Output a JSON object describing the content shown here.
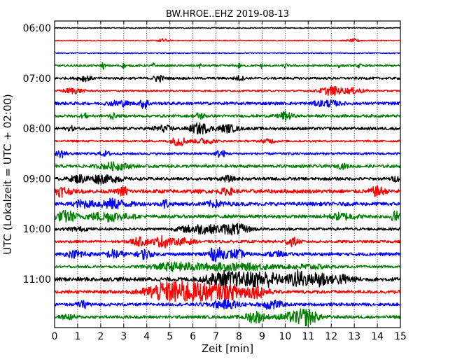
{
  "chart_data": {
    "type": "line",
    "title": "BW.HROE..EHZ 2019-08-13",
    "xlabel": "Zeit  [min]",
    "ylabel": "UTC (Lokalzeit = UTC + 02:00)",
    "xlim": [
      0,
      15
    ],
    "x_ticks": [
      "0",
      "1",
      "2",
      "3",
      "4",
      "5",
      "6",
      "7",
      "8",
      "9",
      "10",
      "11",
      "12",
      "13",
      "14",
      "15"
    ],
    "y_tick_labels": [
      "06:00",
      "07:00",
      "08:00",
      "09:00",
      "10:00",
      "11:00"
    ],
    "vertical_grid": "dotted",
    "trace_interval_min": 15,
    "trace_colors": [
      "#000000",
      "#ff0000",
      "#0000ff",
      "#008000"
    ],
    "series": [
      {
        "start": "06:00",
        "color": "#000000",
        "noise": 0.15,
        "events": []
      },
      {
        "start": "06:15",
        "color": "#ff0000",
        "noise": 0.15,
        "events": [
          [
            4.7,
            0.5,
            0.15
          ],
          [
            13.0,
            0.4,
            0.2
          ]
        ]
      },
      {
        "start": "06:30",
        "color": "#0000ff",
        "noise": 0.15,
        "events": []
      },
      {
        "start": "06:45",
        "color": "#008000",
        "noise": 0.3,
        "events": [
          [
            2.1,
            1.0,
            0.05
          ],
          [
            3.0,
            0.7,
            0.05
          ],
          [
            4.3,
            0.7,
            0.05
          ],
          [
            6.3,
            0.7,
            0.05
          ],
          [
            8.0,
            0.7,
            0.05
          ],
          [
            9.0,
            0.7,
            0.05
          ],
          [
            10.0,
            0.9,
            0.05
          ],
          [
            12.3,
            0.6,
            0.05
          ],
          [
            13.2,
            0.6,
            0.05
          ]
        ]
      },
      {
        "start": "07:00",
        "color": "#000000",
        "noise": 0.35,
        "events": [
          [
            1.3,
            0.8,
            0.2
          ],
          [
            4.5,
            1.0,
            0.15
          ],
          [
            8.0,
            0.6,
            0.15
          ]
        ]
      },
      {
        "start": "07:15",
        "color": "#ff0000",
        "noise": 0.25,
        "events": [
          [
            0.8,
            0.8,
            0.3
          ],
          [
            12.0,
            1.3,
            0.35
          ],
          [
            13.0,
            0.8,
            0.3
          ]
        ]
      },
      {
        "start": "07:30",
        "color": "#0000ff",
        "noise": 0.45,
        "events": [
          [
            2.8,
            0.8,
            0.3
          ],
          [
            3.9,
            1.6,
            0.12
          ],
          [
            11.8,
            0.8,
            0.4
          ]
        ]
      },
      {
        "start": "07:45",
        "color": "#008000",
        "noise": 0.4,
        "events": [
          [
            1.3,
            0.7,
            0.1
          ],
          [
            2.5,
            0.8,
            0.1
          ],
          [
            6.3,
            0.9,
            0.15
          ],
          [
            10.0,
            1.2,
            0.2
          ]
        ]
      },
      {
        "start": "08:00",
        "color": "#000000",
        "noise": 0.45,
        "events": [
          [
            0.7,
            0.6,
            0.1
          ],
          [
            4.7,
            0.8,
            0.3
          ],
          [
            6.3,
            1.5,
            0.3
          ],
          [
            7.5,
            1.0,
            0.3
          ]
        ]
      },
      {
        "start": "08:15",
        "color": "#ff0000",
        "noise": 0.3,
        "events": [
          [
            5.4,
            1.4,
            0.25
          ],
          [
            6.5,
            0.8,
            0.3
          ],
          [
            9.3,
            0.6,
            0.2
          ]
        ]
      },
      {
        "start": "08:30",
        "color": "#0000ff",
        "noise": 0.35,
        "events": [
          [
            0.3,
            1.1,
            0.15
          ],
          [
            2.2,
            0.6,
            0.2
          ],
          [
            7.2,
            1.1,
            0.15
          ]
        ]
      },
      {
        "start": "08:45",
        "color": "#008000",
        "noise": 0.45,
        "events": [
          [
            2.6,
            1.0,
            0.45
          ],
          [
            12.5,
            0.6,
            0.15
          ]
        ]
      },
      {
        "start": "09:00",
        "color": "#000000",
        "noise": 0.45,
        "events": [
          [
            1.1,
            1.1,
            0.3
          ],
          [
            2.0,
            1.3,
            0.25
          ],
          [
            2.7,
            0.9,
            0.2
          ],
          [
            7.5,
            0.7,
            0.2
          ],
          [
            14.8,
            0.6,
            0.15
          ]
        ]
      },
      {
        "start": "09:15",
        "color": "#ff0000",
        "noise": 0.6,
        "events": [
          [
            0.3,
            1.3,
            0.25
          ],
          [
            3.0,
            1.3,
            0.15
          ],
          [
            7.5,
            0.8,
            0.2
          ],
          [
            14.0,
            1.3,
            0.2
          ]
        ]
      },
      {
        "start": "09:30",
        "color": "#0000ff",
        "noise": 0.55,
        "events": [
          [
            1.2,
            1.0,
            0.25
          ],
          [
            2.5,
            1.3,
            0.5
          ],
          [
            4.8,
            1.3,
            0.1
          ],
          [
            7.0,
            0.8,
            0.3
          ]
        ]
      },
      {
        "start": "09:45",
        "color": "#008000",
        "noise": 0.5,
        "events": [
          [
            0.5,
            1.6,
            0.3
          ],
          [
            2.3,
            1.3,
            0.6
          ],
          [
            12.5,
            0.9,
            0.4
          ],
          [
            14.8,
            1.4,
            0.15
          ]
        ]
      },
      {
        "start": "10:00",
        "color": "#000000",
        "noise": 0.4,
        "events": [
          [
            6.3,
            1.3,
            0.6
          ],
          [
            7.8,
            1.5,
            0.45
          ],
          [
            1.0,
            0.5,
            0.3
          ]
        ]
      },
      {
        "start": "10:15",
        "color": "#ff0000",
        "noise": 0.4,
        "events": [
          [
            3.7,
            1.1,
            0.3
          ],
          [
            4.7,
            1.7,
            0.25
          ],
          [
            5.6,
            0.9,
            0.3
          ],
          [
            10.3,
            1.2,
            0.2
          ]
        ]
      },
      {
        "start": "10:30",
        "color": "#0000ff",
        "noise": 0.5,
        "events": [
          [
            1.0,
            1.0,
            0.3
          ],
          [
            2.6,
            1.2,
            0.25
          ],
          [
            3.9,
            1.3,
            0.2
          ],
          [
            7.0,
            1.8,
            0.3
          ],
          [
            7.9,
            1.2,
            0.25
          ],
          [
            9.6,
            0.8,
            0.2
          ]
        ]
      },
      {
        "start": "10:45",
        "color": "#008000",
        "noise": 0.35,
        "events": [
          [
            5.3,
            1.2,
            0.8
          ],
          [
            7.5,
            1.0,
            0.8
          ],
          [
            9.0,
            0.6,
            0.5
          ],
          [
            11.0,
            0.7,
            0.6
          ]
        ]
      },
      {
        "start": "11:00",
        "color": "#000000",
        "noise": 0.6,
        "events": [
          [
            7.3,
            2.1,
            0.5
          ],
          [
            8.5,
            1.6,
            0.5
          ],
          [
            9.3,
            1.6,
            0.4
          ],
          [
            10.6,
            2.6,
            0.3
          ],
          [
            11.5,
            2.6,
            0.2
          ],
          [
            12.4,
            1.2,
            0.4
          ]
        ]
      },
      {
        "start": "11:15",
        "color": "#ff0000",
        "noise": 0.5,
        "events": [
          [
            4.5,
            1.7,
            0.5
          ],
          [
            5.5,
            2.6,
            0.6
          ],
          [
            6.7,
            2.0,
            0.6
          ],
          [
            8.0,
            1.8,
            0.5
          ],
          [
            8.9,
            1.2,
            0.3
          ]
        ]
      },
      {
        "start": "11:30",
        "color": "#0000ff",
        "noise": 0.45,
        "events": [
          [
            1.3,
            0.9,
            0.2
          ],
          [
            7.4,
            1.1,
            0.5
          ],
          [
            9.4,
            1.4,
            0.3
          ]
        ]
      },
      {
        "start": "11:45",
        "color": "#008000",
        "noise": 0.45,
        "events": [
          [
            0.6,
            0.6,
            0.2
          ],
          [
            8.7,
            1.7,
            0.3
          ],
          [
            10.5,
            1.4,
            0.5
          ],
          [
            11.0,
            1.5,
            0.3
          ]
        ]
      }
    ]
  }
}
